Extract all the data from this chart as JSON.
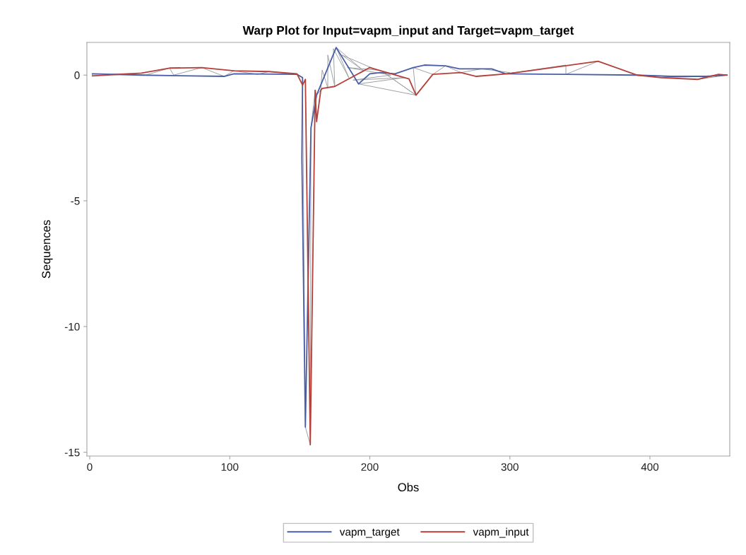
{
  "chart_data": {
    "type": "line",
    "title": "Warp Plot for Input=vapm_input and Target=vapm_target",
    "xlabel": "Obs",
    "ylabel": "Sequences",
    "xlim": [
      -2,
      457
    ],
    "xticks": [
      0,
      100,
      200,
      300,
      400
    ],
    "ylim": [
      -15.15,
      1.3
    ],
    "yticks": [
      -15,
      -10,
      -5,
      0
    ],
    "grid": false,
    "legend": "bottom",
    "marker": "none",
    "line_style": "solid",
    "series": [
      {
        "color": "#9a9ea2",
        "x": [
          2,
          2,
          20,
          30,
          40,
          57,
          60,
          80,
          96,
          103,
          120,
          128,
          148,
          148,
          152,
          152,
          154,
          157.5,
          158,
          161,
          162,
          165,
          166,
          170,
          170,
          175,
          174,
          185,
          176,
          195,
          180,
          205,
          184,
          215,
          188,
          225,
          192,
          233,
          210,
          233,
          231,
          245,
          254,
          265,
          280,
          300,
          297,
          340,
          340,
          363,
          390,
          391,
          415,
          408,
          440,
          434,
          455,
          455
        ],
        "values": [
          0.05,
          -0.03,
          0.05,
          0.06,
          0.0,
          0.28,
          0.0,
          0.3,
          -0.05,
          0.17,
          0.03,
          0.14,
          0.03,
          0.05,
          -0.1,
          -0.4,
          -14.0,
          -14.7,
          -2.1,
          -0.6,
          -0.8,
          -0.6,
          0.2,
          -0.5,
          0.8,
          -0.45,
          1.05,
          -0.1,
          1.1,
          0.2,
          0.8,
          0.2,
          0.3,
          0.0,
          -0.2,
          -0.1,
          -0.35,
          -0.8,
          0.1,
          -0.8,
          0.3,
          0.03,
          0.37,
          0.1,
          0.25,
          0.1,
          0.05,
          0.4,
          0.03,
          0.55,
          0.0,
          0.0,
          -0.05,
          -0.1,
          -0.05,
          -0.17,
          0.0,
          0.0
        ]
      },
      {
        "name": "vapm_target",
        "color": "#4a5fa8",
        "x": [
          2,
          37,
          96,
          103,
          148,
          152,
          151.5,
          154,
          158,
          162,
          176,
          192,
          200,
          208,
          218,
          231,
          239,
          254,
          264,
          287,
          297,
          340,
          390,
          415,
          440,
          455
        ],
        "values": [
          0.05,
          0.0,
          -0.05,
          0.05,
          0.03,
          -0.1,
          -3.3,
          -14.0,
          -2.1,
          -0.8,
          1.1,
          -0.35,
          0.05,
          0.1,
          0.05,
          0.3,
          0.4,
          0.37,
          0.25,
          0.25,
          0.05,
          0.03,
          0.0,
          -0.05,
          -0.05,
          0.0
        ]
      },
      {
        "name": "vapm_input",
        "color": "#b5403a",
        "x": [
          2,
          37,
          57,
          80,
          103,
          128,
          148,
          152,
          154,
          157.5,
          161,
          162,
          165,
          166,
          175,
          200,
          228,
          233,
          245,
          265,
          276,
          298,
          363,
          391,
          408,
          434,
          449,
          455
        ],
        "values": [
          -0.03,
          0.08,
          0.28,
          0.3,
          0.17,
          0.14,
          0.05,
          -0.4,
          -0.17,
          -14.7,
          -0.6,
          -1.85,
          -0.6,
          -0.53,
          -0.45,
          0.3,
          -0.15,
          -0.8,
          0.03,
          0.1,
          -0.05,
          0.05,
          0.55,
          0.0,
          -0.1,
          -0.17,
          0.03,
          0.0
        ]
      }
    ]
  }
}
